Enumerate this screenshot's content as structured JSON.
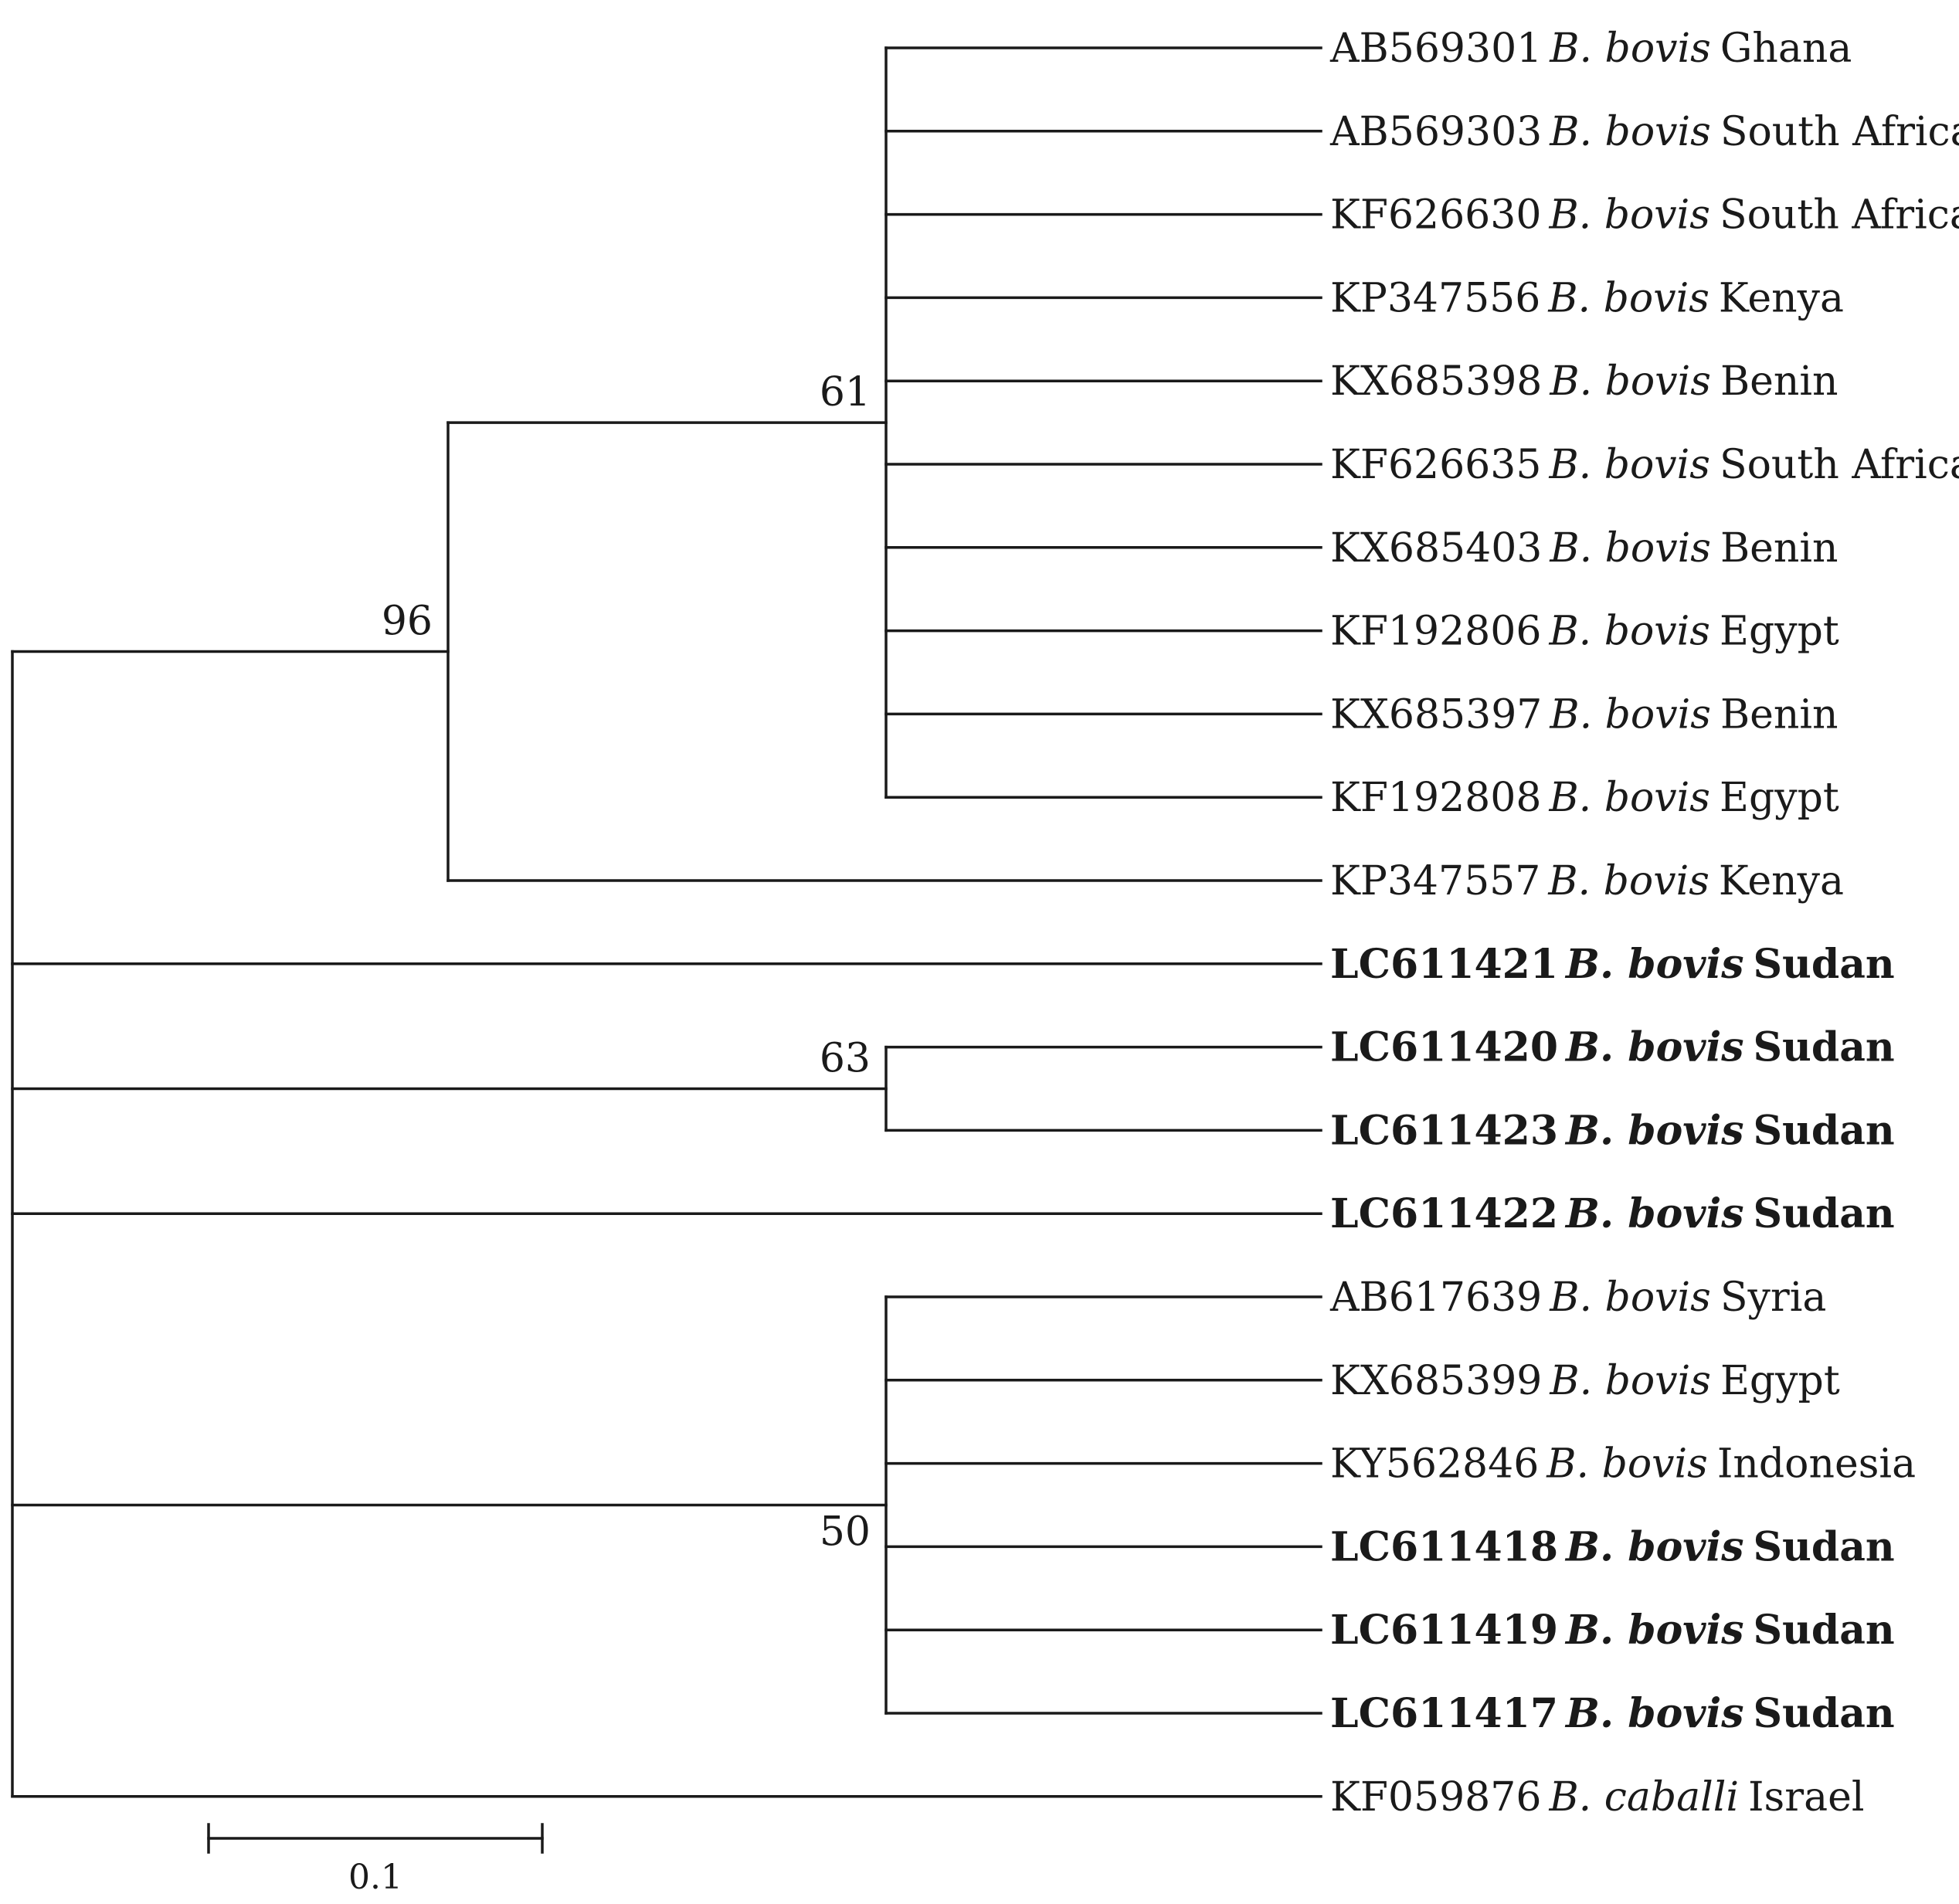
{
  "tree": {
    "type": "phylogenetic-tree",
    "clades": [
      {
        "id": "n96",
        "support": "96",
        "children": [
          {
            "id": "n61",
            "support": "61",
            "children": [
              {
                "accession": "AB569301",
                "species": "B. bovis",
                "country": "Ghana",
                "bold": false
              },
              {
                "accession": "AB569303",
                "species": "B. bovis",
                "country": "South Africa",
                "bold": false
              },
              {
                "accession": "KF626630",
                "species": "B. bovis",
                "country": "South Africa",
                "bold": false
              },
              {
                "accession": "KP347556",
                "species": "B. bovis",
                "country": "Kenya",
                "bold": false
              },
              {
                "accession": "KX685398",
                "species": "B. bovis",
                "country": "Benin",
                "bold": false
              },
              {
                "accession": "KF626635",
                "species": "B. bovis",
                "country": "South Africa",
                "bold": false
              },
              {
                "accession": "KX685403",
                "species": "B. bovis",
                "country": "Benin",
                "bold": false
              },
              {
                "accession": "KF192806",
                "species": "B. bovis",
                "country": "Egypt",
                "bold": false
              },
              {
                "accession": "KX685397",
                "species": "B. bovis",
                "country": "Benin",
                "bold": false
              },
              {
                "accession": "KF192808",
                "species": "B. bovis",
                "country": "Egypt",
                "bold": false
              }
            ]
          },
          {
            "accession": "KP347557",
            "species": "B. bovis",
            "country": "Kenya",
            "bold": false
          }
        ]
      },
      {
        "accession": "LC611421",
        "species": "B. bovis",
        "country": "Sudan",
        "bold": true
      },
      {
        "id": "n63",
        "support": "63",
        "children": [
          {
            "accession": "LC611420",
            "species": "B. bovis",
            "country": "Sudan",
            "bold": true
          },
          {
            "accession": "LC611423",
            "species": "B. bovis",
            "country": "Sudan",
            "bold": true
          }
        ]
      },
      {
        "accession": "LC611422",
        "species": "B. bovis",
        "country": "Sudan",
        "bold": true
      },
      {
        "id": "n50",
        "support": "50",
        "children": [
          {
            "accession": "AB617639",
            "species": "B. bovis",
            "country": "Syria",
            "bold": false
          },
          {
            "accession": "KX685399",
            "species": "B. bovis",
            "country": "Egypt",
            "bold": false
          },
          {
            "accession": "KY562846",
            "species": "B. bovis",
            "country": "Indonesia",
            "bold": false
          },
          {
            "accession": "LC611418",
            "species": "B. bovis",
            "country": "Sudan",
            "bold": true
          },
          {
            "accession": "LC611419",
            "species": "B. bovis",
            "country": "Sudan",
            "bold": true
          },
          {
            "accession": "LC611417",
            "species": "B. bovis",
            "country": "Sudan",
            "bold": true
          }
        ]
      },
      {
        "accession": "KF059876",
        "species": "B. caballi",
        "country": "Israel",
        "bold": false
      }
    ]
  },
  "scale_bar": {
    "label": "0.1"
  }
}
